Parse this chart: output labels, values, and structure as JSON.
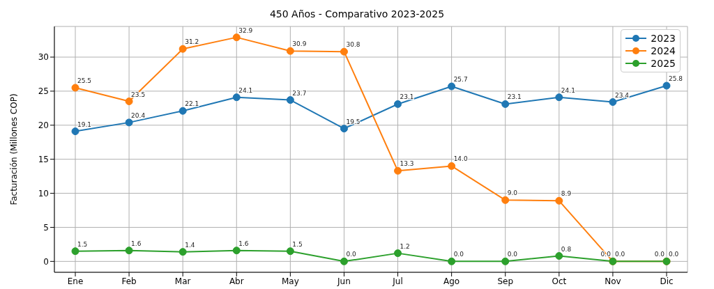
{
  "chart_data": {
    "type": "line",
    "title": "450 Años - Comparativo 2023-2025",
    "ylabel": "Facturación (Millones COP)",
    "categories": [
      "Ene",
      "Feb",
      "Mar",
      "Abr",
      "May",
      "Jun",
      "Jul",
      "Ago",
      "Sep",
      "Oct",
      "Nov",
      "Dic"
    ],
    "series": [
      {
        "name": "2023",
        "color": "#1f77b4",
        "values": [
          19.1,
          20.4,
          22.1,
          24.1,
          23.7,
          19.5,
          23.1,
          25.7,
          23.1,
          24.1,
          23.4,
          25.8
        ],
        "value_labels": [
          "19.1",
          "20.4",
          "22.1",
          "24.1",
          "23.7",
          "19.5",
          "23.1",
          "25.7",
          "23.1",
          "24.1",
          "23.4",
          "25.8"
        ]
      },
      {
        "name": "2024",
        "color": "#ff7f0e",
        "values": [
          25.5,
          23.5,
          31.2,
          32.9,
          30.9,
          30.8,
          13.3,
          14.0,
          9.0,
          8.9,
          0.0,
          0.0
        ],
        "value_labels": [
          "25.5",
          "23.5",
          "31.2",
          "32.9",
          "30.9",
          "30.8",
          "13.3",
          "14.0",
          "9.0",
          "8.9",
          "0.0",
          "0.0"
        ]
      },
      {
        "name": "2025",
        "color": "#2ca02c",
        "values": [
          1.5,
          1.6,
          1.4,
          1.6,
          1.5,
          0.0,
          1.2,
          0.0,
          0.0,
          0.8,
          0.0,
          0.0
        ],
        "value_labels": [
          "1.5",
          "1.6",
          "1.4",
          "1.6",
          "1.5",
          "0.0",
          "1.2",
          "0.0",
          "0.0",
          "0.8",
          "0.0",
          "0.0"
        ]
      }
    ],
    "ylim": [
      -1.6,
      34.5
    ],
    "yticks": [
      0,
      5,
      10,
      15,
      20,
      25,
      30
    ],
    "grid": true,
    "legend": "top right",
    "marker": "circle",
    "line_style": "solid"
  }
}
